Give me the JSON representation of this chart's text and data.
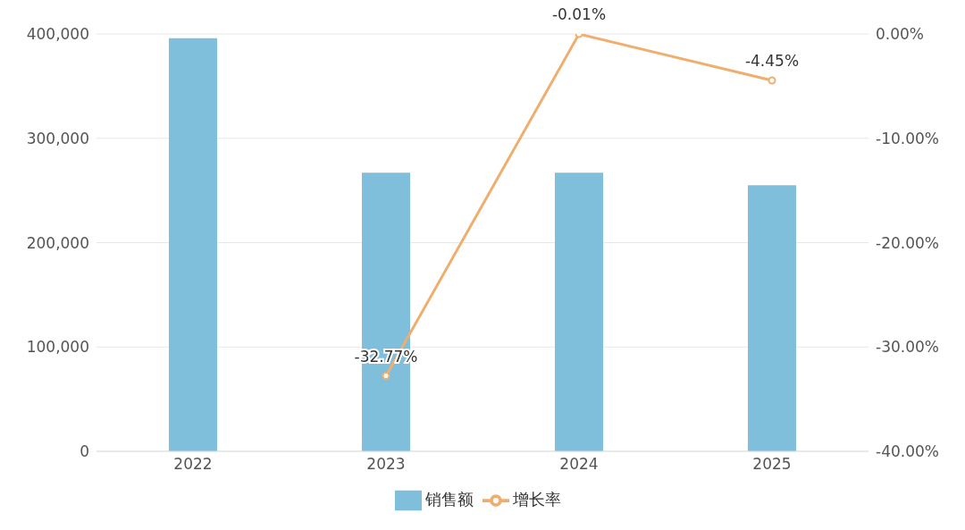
{
  "chart_data": {
    "type": "bar",
    "categories": [
      "2022",
      "2023",
      "2024",
      "2025"
    ],
    "series": [
      {
        "name": "销售额",
        "color": "#7fbfdc",
        "values": [
          396000,
          267000,
          267000,
          255000
        ]
      },
      {
        "name": "增长率",
        "type": "line",
        "axis": "y2",
        "color": "#f0ae6e",
        "values": [
          null,
          -32.77,
          -0.01,
          -4.45
        ],
        "value_labels": [
          null,
          "-32.77%",
          "-0.01%",
          "-4.45%"
        ]
      }
    ],
    "ylim": [
      0,
      400000
    ],
    "yticks": [
      {
        "value": 0,
        "label": "0"
      },
      {
        "value": 100000,
        "label": "100,000"
      },
      {
        "value": 200000,
        "label": "200,000"
      },
      {
        "value": 300000,
        "label": "300,000"
      },
      {
        "value": 400000,
        "label": "400,000"
      }
    ],
    "y2lim": [
      -40,
      0
    ],
    "y2ticks": [
      {
        "value": -40,
        "label": "-40.00%"
      },
      {
        "value": -30,
        "label": "-30.00%"
      },
      {
        "value": -20,
        "label": "-20.00%"
      },
      {
        "value": -10,
        "label": "-10.00%"
      },
      {
        "value": 0,
        "label": "0.00%"
      }
    ],
    "grid": "y",
    "legend": "bottom",
    "marker": "circle",
    "line_style": "solid"
  }
}
